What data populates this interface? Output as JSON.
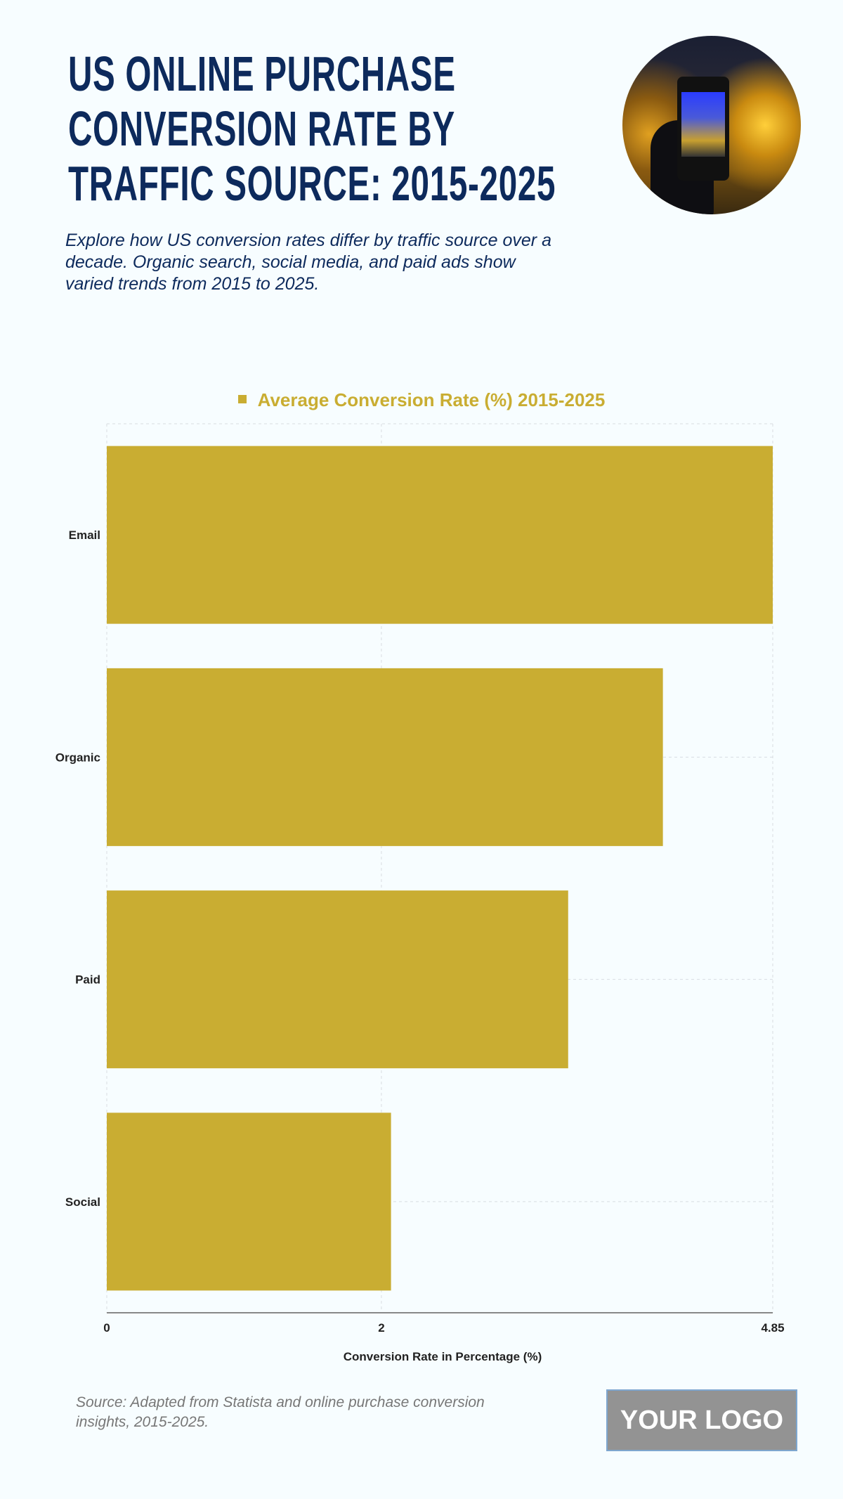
{
  "header": {
    "title_lines": [
      "US ONLINE PURCHASE",
      "CONVERSION RATE BY",
      "TRAFFIC SOURCE: 2015-2025"
    ],
    "subtitle_lines": [
      "Explore how US conversion rates differ by traffic source over a",
      "decade. Organic search, social media, and paid ads show",
      "varied trends from 2015 to 2025."
    ]
  },
  "chart_data": {
    "type": "bar",
    "orientation": "horizontal",
    "categories": [
      "Email",
      "Organic",
      "Paid",
      "Social"
    ],
    "series": [
      {
        "name": "Average Conversion Rate (%) 2015-2025",
        "values": [
          4.85,
          4.05,
          3.36,
          2.07
        ],
        "color": "#c9ad32"
      }
    ],
    "xlabel": "Conversion Rate in Percentage (%)",
    "ylabel": "",
    "xlim": [
      0,
      4.85
    ],
    "xticks": [
      0,
      2,
      4.85
    ],
    "xtick_labels": [
      "0",
      "2",
      "4.85"
    ],
    "grid": true,
    "legend": "top-center"
  },
  "footer": {
    "source_lines": [
      "Source: Adapted from Statista and online purchase conversion",
      "insights, 2015-2025."
    ],
    "logo_text": "YOUR LOGO"
  },
  "colors": {
    "title": "#0d2a5c",
    "bar": "#c9ad32",
    "background": "#f7fdff"
  }
}
